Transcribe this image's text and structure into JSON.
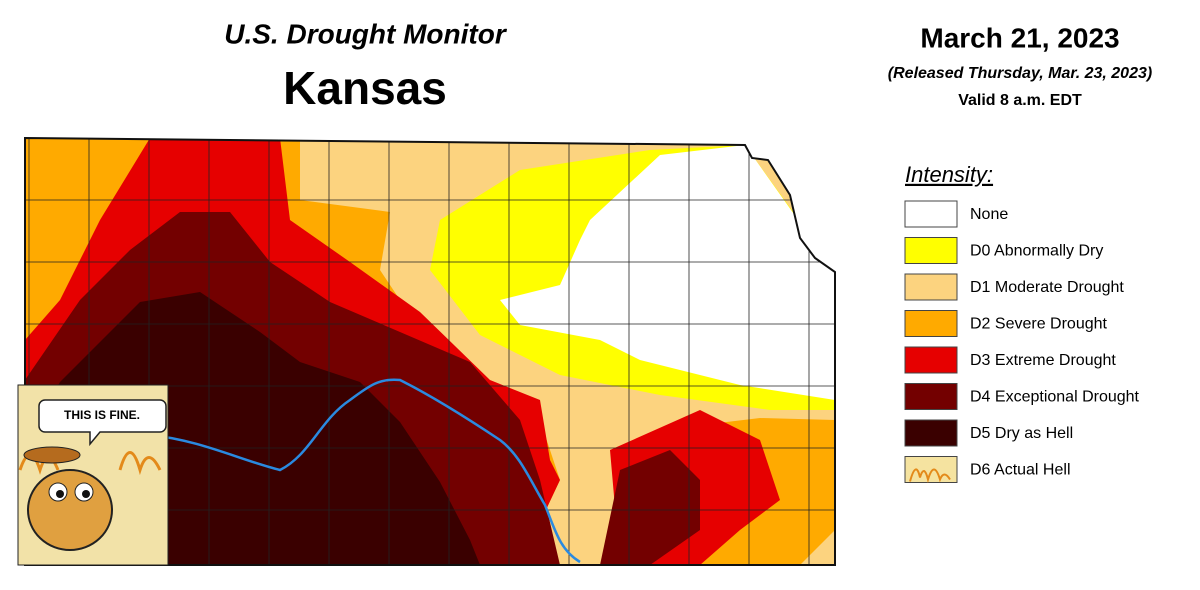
{
  "header": {
    "title": "U.S. Drought Monitor",
    "state": "Kansas",
    "date": "March 21, 2023",
    "released": "(Released Thursday, Mar. 23, 2023)",
    "valid": "Valid 8 a.m. EDT"
  },
  "legend": {
    "title": "Intensity:",
    "items": [
      {
        "label": "None",
        "color": "#ffffff"
      },
      {
        "label": "D0 Abnormally Dry",
        "color": "#ffff00"
      },
      {
        "label": "D1 Moderate Drought",
        "color": "#fcd37f"
      },
      {
        "label": "D2 Severe Drought",
        "color": "#ffaa00"
      },
      {
        "label": "D3 Extreme Drought",
        "color": "#e60000"
      },
      {
        "label": "D4 Exceptional Drought",
        "color": "#730000"
      },
      {
        "label": "D5 Dry as Hell",
        "color": "#3a0000"
      },
      {
        "label": "D6 Actual Hell",
        "color": "#f5e3a0"
      }
    ]
  },
  "meme": {
    "caption": "THIS IS FINE."
  }
}
